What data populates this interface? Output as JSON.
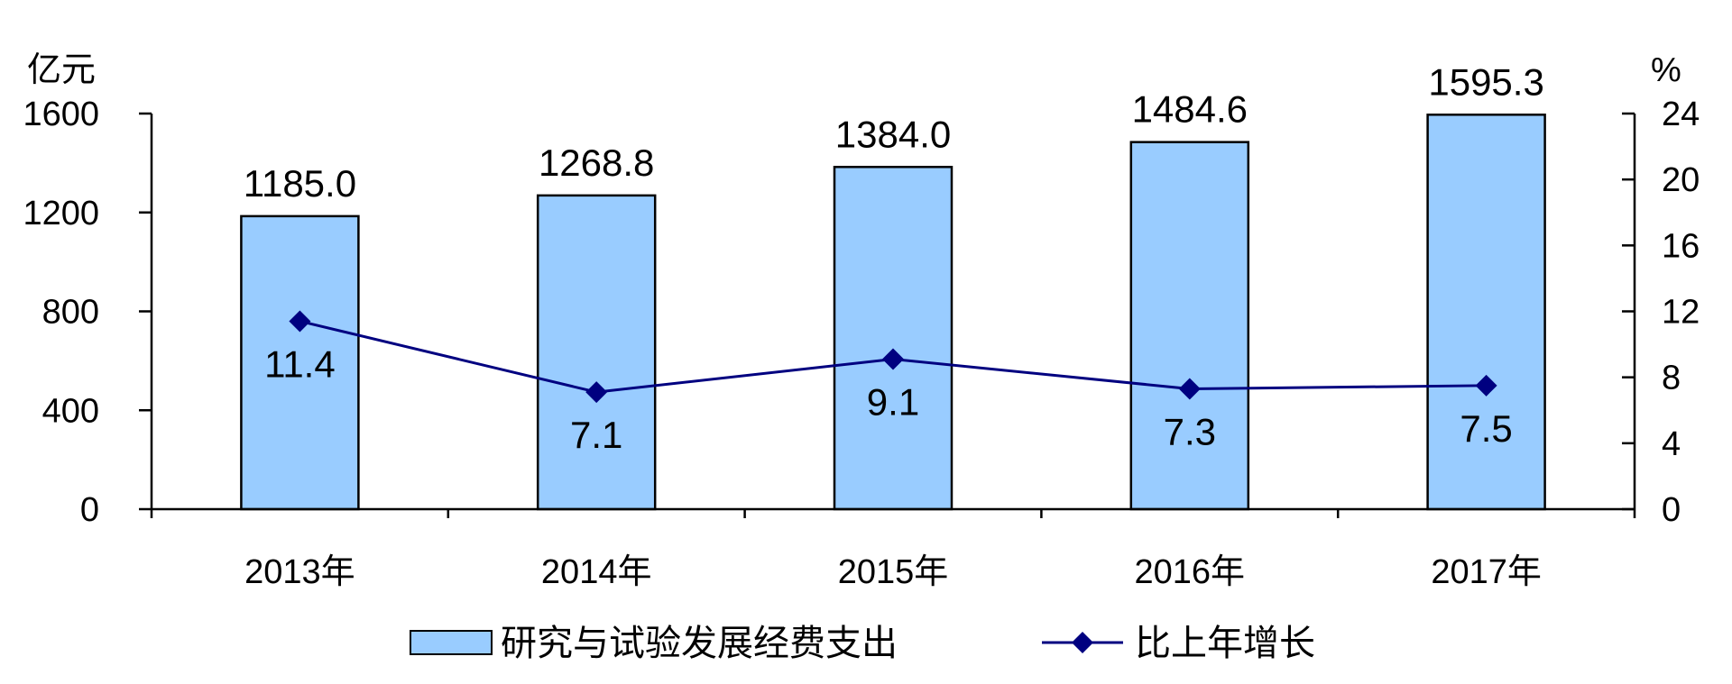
{
  "chart_data": {
    "type": "bar",
    "title": "",
    "categories": [
      "2013年",
      "2014年",
      "2015年",
      "2016年",
      "2017年"
    ],
    "series": [
      {
        "name": "研究与试验发展经费支出",
        "type": "bar",
        "axis": "left",
        "values": [
          1185.0,
          1268.8,
          1384.0,
          1484.6,
          1595.3
        ],
        "labels": [
          "1185.0",
          "1268.8",
          "1384.0",
          "1484.6",
          "1595.3"
        ],
        "color": "#99ccff"
      },
      {
        "name": "比上年增长",
        "type": "line",
        "axis": "right",
        "values": [
          11.4,
          7.1,
          9.1,
          7.3,
          7.5
        ],
        "labels": [
          "11.4",
          "7.1",
          "9.1",
          "7.3",
          "7.5"
        ],
        "color": "#000080"
      }
    ],
    "y_left": {
      "unit": "亿元",
      "ylim": [
        0,
        1600
      ],
      "ticks": [
        0,
        400,
        800,
        1200,
        1600
      ],
      "tick_labels": [
        "0",
        "400",
        "800",
        "1200",
        "1600"
      ]
    },
    "y_right": {
      "unit": "%",
      "ylim": [
        0,
        24
      ],
      "ticks": [
        0,
        4,
        8,
        12,
        16,
        20,
        24
      ],
      "tick_labels": [
        "0",
        "4",
        "8",
        "12",
        "16",
        "20",
        "24"
      ]
    },
    "grid": false,
    "legend_position": "bottom"
  }
}
